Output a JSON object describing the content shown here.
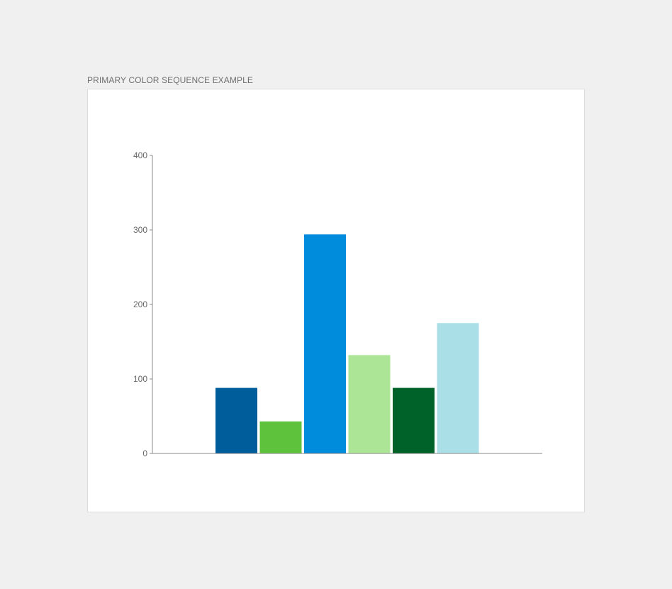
{
  "caption": "PRIMARY COLOR SEQUENCE EXAMPLE",
  "chart_data": {
    "type": "bar",
    "title": "",
    "xlabel": "",
    "ylabel": "",
    "ylim": [
      0,
      400
    ],
    "yticks": [
      0,
      100,
      200,
      300,
      400
    ],
    "ytick_labels": [
      "0",
      "100",
      "200",
      "300",
      "400"
    ],
    "grid": false,
    "legend": "none",
    "bars": [
      {
        "value": 88,
        "color": "#005d9c"
      },
      {
        "value": 43,
        "color": "#5ec23d"
      },
      {
        "value": 294,
        "color": "#008cdc"
      },
      {
        "value": 132,
        "color": "#abe595"
      },
      {
        "value": 88,
        "color": "#006129"
      },
      {
        "value": 175,
        "color": "#aadfe8"
      }
    ]
  }
}
